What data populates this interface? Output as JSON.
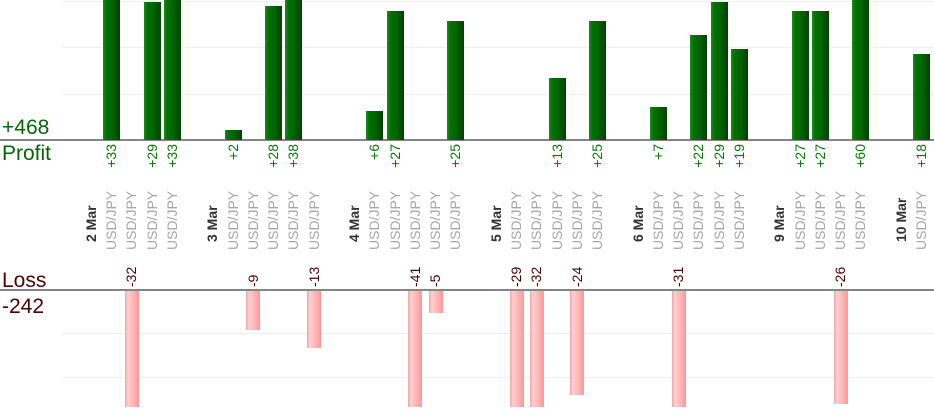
{
  "labels": {
    "profit_total": "+468",
    "profit_axis": "Profit",
    "loss_axis": "Loss",
    "loss_total": "-242"
  },
  "chart_data": {
    "type": "bar",
    "subtype": "profit-loss-per-trade",
    "title": "",
    "instrument": "USD/JPY",
    "grid": true,
    "legend_position": "left",
    "profit_axis_label": "Profit",
    "loss_axis_label": "Loss",
    "profit_total": 468,
    "loss_total": -242,
    "days": [
      {
        "date": "2 Mar",
        "trades": [
          {
            "symbol": "USD/JPY",
            "pl": 33,
            "label": "+33"
          },
          {
            "symbol": "USD/JPY",
            "pl": -32,
            "label": "-32"
          },
          {
            "symbol": "USD/JPY",
            "pl": 29,
            "label": "+29"
          },
          {
            "symbol": "USD/JPY",
            "pl": 33,
            "label": "+33"
          }
        ]
      },
      {
        "date": "3 Mar",
        "trades": [
          {
            "symbol": "USD/JPY",
            "pl": 2,
            "label": "+2"
          },
          {
            "symbol": "USD/JPY",
            "pl": -9,
            "label": "-9"
          },
          {
            "symbol": "USD/JPY",
            "pl": 28,
            "label": "+28"
          },
          {
            "symbol": "USD/JPY",
            "pl": 38,
            "label": "+38"
          },
          {
            "symbol": "USD/JPY",
            "pl": -13,
            "label": "-13"
          }
        ]
      },
      {
        "date": "4 Mar",
        "trades": [
          {
            "symbol": "USD/JPY",
            "pl": 6,
            "label": "+6"
          },
          {
            "symbol": "USD/JPY",
            "pl": 27,
            "label": "+27"
          },
          {
            "symbol": "USD/JPY",
            "pl": -41,
            "label": "-41"
          },
          {
            "symbol": "USD/JPY",
            "pl": -5,
            "label": "-5"
          },
          {
            "symbol": "USD/JPY",
            "pl": 25,
            "label": "+25"
          }
        ]
      },
      {
        "date": "5 Mar",
        "trades": [
          {
            "symbol": "USD/JPY",
            "pl": -29,
            "label": "-29"
          },
          {
            "symbol": "USD/JPY",
            "pl": -32,
            "label": "-32"
          },
          {
            "symbol": "USD/JPY",
            "pl": 13,
            "label": "+13"
          },
          {
            "symbol": "USD/JPY",
            "pl": -24,
            "label": "-24"
          },
          {
            "symbol": "USD/JPY",
            "pl": 25,
            "label": "+25"
          }
        ]
      },
      {
        "date": "6 Mar",
        "trades": [
          {
            "symbol": "USD/JPY",
            "pl": 7,
            "label": "+7"
          },
          {
            "symbol": "USD/JPY",
            "pl": -31,
            "label": "-31"
          },
          {
            "symbol": "USD/JPY",
            "pl": 22,
            "label": "+22"
          },
          {
            "symbol": "USD/JPY",
            "pl": 29,
            "label": "+29"
          },
          {
            "symbol": "USD/JPY",
            "pl": 19,
            "label": "+19"
          }
        ]
      },
      {
        "date": "9 Mar",
        "trades": [
          {
            "symbol": "USD/JPY",
            "pl": 27,
            "label": "+27"
          },
          {
            "symbol": "USD/JPY",
            "pl": 27,
            "label": "+27"
          },
          {
            "symbol": "USD/JPY",
            "pl": -26,
            "label": "-26"
          },
          {
            "symbol": "USD/JPY",
            "pl": 60,
            "label": "+60"
          }
        ]
      },
      {
        "date": "10 Mar",
        "trades": [
          {
            "symbol": "USD/JPY",
            "pl": 18,
            "label": "+18"
          }
        ]
      }
    ],
    "series": [
      {
        "name": "Profit",
        "color": "#006600",
        "total": 468,
        "values": [
          33,
          29,
          33,
          2,
          28,
          38,
          6,
          27,
          25,
          13,
          25,
          7,
          22,
          29,
          19,
          27,
          27,
          60,
          18
        ]
      },
      {
        "name": "Loss",
        "color": "#ffaaaa",
        "total": -242,
        "values": [
          -32,
          -9,
          -13,
          -41,
          -5,
          -29,
          -32,
          -24,
          -31,
          -26
        ]
      }
    ],
    "colors": {
      "profit_bar": "#006600",
      "loss_bar": "#ffaaaa",
      "profit_text": "#066606",
      "loss_text": "#4a0404",
      "date_text": "#333333",
      "symbol_text": "#a6a6a6",
      "axis_line": "#848484",
      "gridline": "#eeeeee"
    }
  }
}
